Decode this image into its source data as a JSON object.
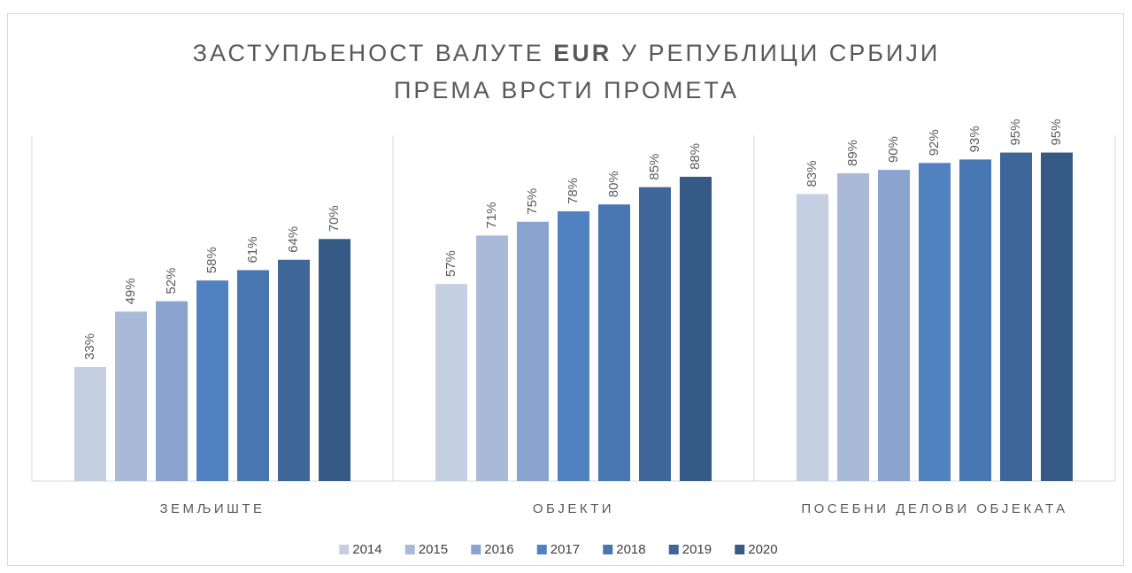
{
  "chart_data": {
    "type": "bar",
    "title": {
      "line1": [
        "ЗАСТУПЉЕНОСТ ВАЛУТЕ ",
        "EUR",
        " У РЕПУБЛИЦИ СРБИЈИ"
      ],
      "line2": "ПРЕМА ВРСТИ ПРОМЕТА"
    },
    "categories": [
      "ЗЕМЉИШТЕ",
      "ОБЈЕКТИ",
      "ПОСЕБНИ ДЕЛОВИ ОБЈЕКАТА"
    ],
    "ylim": [
      0,
      100
    ],
    "legend": "bottom",
    "series": [
      {
        "name": "2014",
        "color": "#c5cfe2",
        "values": [
          33,
          57,
          83
        ],
        "value_labels": [
          "33%",
          "57%",
          "83%"
        ]
      },
      {
        "name": "2015",
        "color": "#a9b9d8",
        "values": [
          49,
          71,
          89
        ],
        "value_labels": [
          "49%",
          "71%",
          "89%"
        ]
      },
      {
        "name": "2016",
        "color": "#8aa4cf",
        "values": [
          52,
          75,
          90
        ],
        "value_labels": [
          "52%",
          "75%",
          "90%"
        ]
      },
      {
        "name": "2017",
        "color": "#5181c0",
        "values": [
          58,
          78,
          92
        ],
        "value_labels": [
          "58%",
          "78%",
          "92%"
        ]
      },
      {
        "name": "2018",
        "color": "#4876b0",
        "values": [
          61,
          80,
          93
        ],
        "value_labels": [
          "61%",
          "80%",
          "93%"
        ]
      },
      {
        "name": "2019",
        "color": "#3f6699",
        "values": [
          64,
          85,
          95
        ],
        "value_labels": [
          "64%",
          "85%",
          "95%"
        ]
      },
      {
        "name": "2020",
        "color": "#355a85",
        "values": [
          70,
          88,
          95
        ],
        "value_labels": [
          "70%",
          "88%",
          "95%"
        ]
      }
    ]
  }
}
